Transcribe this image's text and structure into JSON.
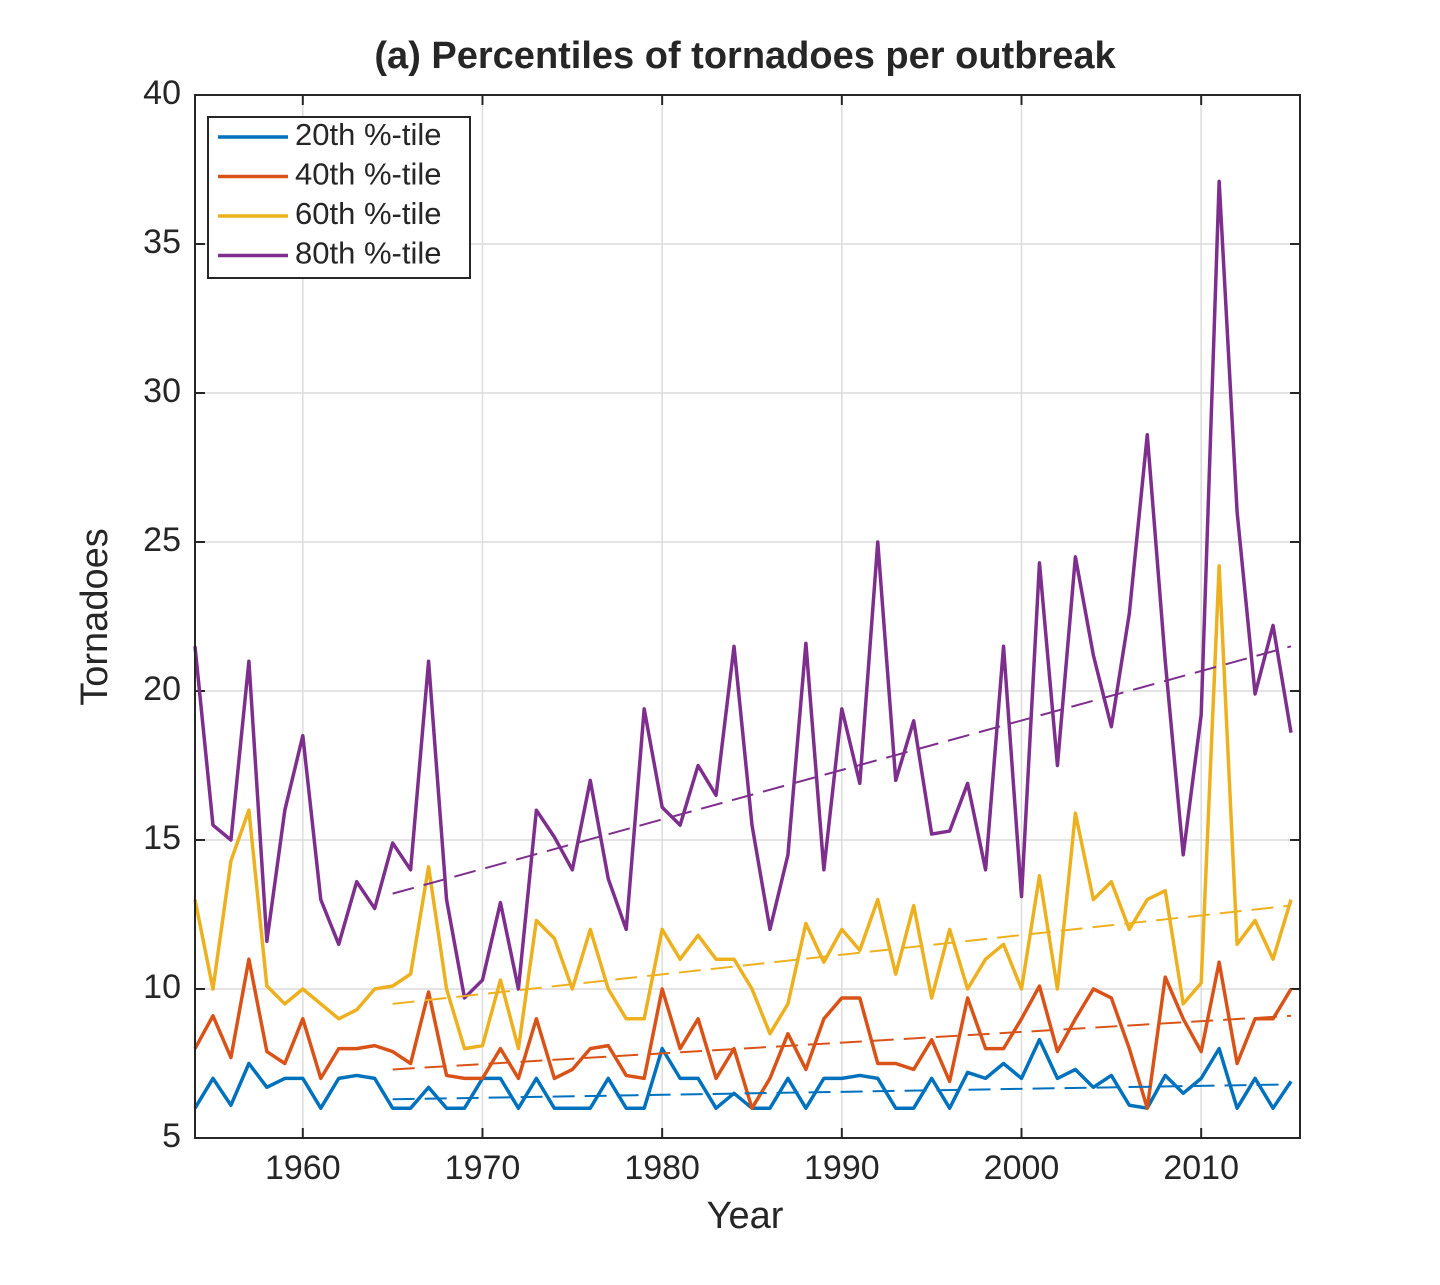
{
  "chart_data": {
    "type": "line",
    "title": "(a) Percentiles of tornadoes per outbreak",
    "xlabel": "Year",
    "ylabel": "Tornadoes",
    "x": [
      1954,
      1955,
      1956,
      1957,
      1958,
      1959,
      1960,
      1961,
      1962,
      1963,
      1964,
      1965,
      1966,
      1967,
      1968,
      1969,
      1970,
      1971,
      1972,
      1973,
      1974,
      1975,
      1976,
      1977,
      1978,
      1979,
      1980,
      1981,
      1982,
      1983,
      1984,
      1985,
      1986,
      1987,
      1988,
      1989,
      1990,
      1991,
      1992,
      1993,
      1994,
      1995,
      1996,
      1997,
      1998,
      1999,
      2000,
      2001,
      2002,
      2003,
      2004,
      2005,
      2006,
      2007,
      2008,
      2009,
      2010,
      2011,
      2012,
      2013,
      2014,
      2015
    ],
    "series": [
      {
        "name": "20th %-tile",
        "color": "#0072BD",
        "values": [
          6,
          7,
          6.1,
          7.5,
          6.7,
          7,
          7,
          6,
          7,
          7.1,
          7,
          6,
          6,
          6.7,
          6,
          6,
          7,
          7,
          6,
          7,
          6,
          6,
          6,
          7,
          6,
          6,
          8,
          7,
          7,
          6,
          6.5,
          6,
          6,
          7,
          6,
          7,
          7,
          7.1,
          7,
          6,
          6,
          7,
          6,
          7.2,
          7,
          7.5,
          7,
          8.3,
          7,
          7.3,
          6.7,
          7.1,
          6.1,
          6,
          7.1,
          6.5,
          7,
          8,
          6,
          7,
          6,
          6.9
        ]
      },
      {
        "name": "40th %-tile",
        "color": "#D95319",
        "values": [
          8,
          9.1,
          7.7,
          11,
          7.9,
          7.5,
          9,
          7,
          8,
          8,
          8.1,
          7.9,
          7.5,
          9.9,
          7.1,
          7,
          7,
          8,
          7,
          9,
          7,
          7.3,
          8,
          8.1,
          7.1,
          7,
          10,
          8,
          9,
          7,
          8,
          6,
          7,
          8.5,
          7.3,
          9,
          9.7,
          9.7,
          7.5,
          7.5,
          7.3,
          8.3,
          6.9,
          9.7,
          8,
          8,
          9,
          10.1,
          7.9,
          9,
          10,
          9.7,
          8,
          6,
          10.4,
          9,
          7.9,
          10.9,
          7.5,
          9,
          9,
          10
        ]
      },
      {
        "name": "60th %-tile",
        "color": "#EDB120",
        "values": [
          13,
          10,
          14.3,
          16,
          10.1,
          9.5,
          10,
          9.5,
          9,
          9.3,
          10,
          10.1,
          10.5,
          14.1,
          10,
          8,
          8.1,
          10.3,
          8,
          12.3,
          11.7,
          10,
          12,
          10,
          9,
          9,
          12,
          11,
          11.8,
          11,
          11,
          10,
          8.5,
          9.5,
          12.2,
          10.9,
          12,
          11.3,
          13,
          10.5,
          12.8,
          9.7,
          12,
          10,
          11,
          11.5,
          10,
          13.8,
          10,
          15.9,
          13,
          13.6,
          12,
          13,
          13.3,
          9.5,
          10.2,
          24.2,
          11.5,
          12.3,
          11,
          13
        ]
      },
      {
        "name": "80th %-tile",
        "color": "#7E2F8E",
        "values": [
          21.5,
          15.5,
          15,
          21,
          11.6,
          16,
          18.5,
          13,
          11.5,
          13.6,
          12.7,
          14.9,
          14,
          21,
          13,
          9.7,
          10.3,
          12.9,
          10,
          16,
          15.1,
          14,
          17,
          13.7,
          12,
          19.4,
          16.1,
          15.5,
          17.5,
          16.5,
          21.5,
          15.5,
          12,
          14.5,
          21.6,
          14,
          19.4,
          16.9,
          25,
          17,
          19,
          15.2,
          15.3,
          16.9,
          14,
          21.5,
          13.1,
          24.3,
          17.5,
          24.5,
          21.2,
          18.8,
          22.6,
          28.6,
          21,
          14.5,
          19.2,
          37.1,
          26,
          19.9,
          22.2,
          18.6
        ]
      }
    ],
    "trends": [
      {
        "color": "#0072BD",
        "x": [
          1965,
          2015
        ],
        "values": [
          6.3,
          6.8
        ]
      },
      {
        "color": "#D95319",
        "x": [
          1965,
          2015
        ],
        "values": [
          7.3,
          9.1
        ]
      },
      {
        "color": "#EDB120",
        "x": [
          1965,
          2015
        ],
        "values": [
          9.5,
          12.8
        ]
      },
      {
        "color": "#7E2F8E",
        "x": [
          1965,
          2015
        ],
        "values": [
          13.2,
          21.5
        ]
      }
    ],
    "xlim": [
      1954,
      2015.5
    ],
    "xticks": [
      1960,
      1970,
      1980,
      1990,
      2000,
      2010
    ],
    "ylim": [
      5,
      40
    ],
    "yticks": [
      5,
      10,
      15,
      20,
      25,
      30,
      35,
      40
    ],
    "grid": true,
    "legend": "upper-left"
  }
}
